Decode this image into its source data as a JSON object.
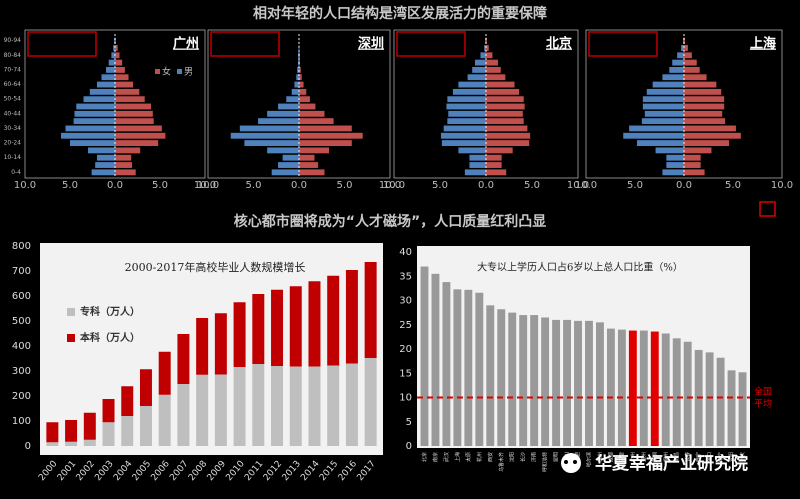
{
  "title": "相对年轻的人口结构是湾区发展活力的重要保障",
  "subtitle": "核心都市圈将成为“人才磁场”，人口质量红利凸显",
  "watermark": "华夏幸福产业研究院",
  "chart_data": [
    {
      "type": "pyramid",
      "title": "广州",
      "legend": true,
      "categories": [
        "0-4",
        null,
        "10-14",
        null,
        "20-24",
        null,
        "30-34",
        null,
        "40-44",
        null,
        "50-54",
        null,
        "60-64",
        null,
        "70-74",
        null,
        "80-84",
        null,
        "90-94"
      ],
      "series": [
        {
          "name": "女",
          "color": "#c0504d",
          "values": [
            2.3,
            1.9,
            1.8,
            2.8,
            4.8,
            5.6,
            5.2,
            4.3,
            4.2,
            4.0,
            3.3,
            2.7,
            2.0,
            1.5,
            1.1,
            0.8,
            0.5,
            0.3,
            0.1
          ]
        },
        {
          "name": "男",
          "color": "#4f81bd",
          "values": [
            -2.6,
            -2.2,
            -2.0,
            -3.0,
            -5.0,
            -6.0,
            -5.5,
            -4.6,
            -4.5,
            -4.3,
            -3.5,
            -2.8,
            -2.0,
            -1.5,
            -1.0,
            -0.7,
            -0.4,
            -0.2,
            -0.1
          ]
        }
      ],
      "xlim": [
        -10,
        10
      ],
      "xticks": [
        {
          "value": -10,
          "label": "10.0"
        },
        {
          "value": -5,
          "label": "5.0"
        },
        {
          "value": 0,
          "label": "0.0"
        },
        {
          "value": 5,
          "label": "5.0"
        },
        {
          "value": 10,
          "label": "10.0"
        }
      ]
    },
    {
      "type": "pyramid",
      "title": "深圳",
      "legend": false,
      "series": [
        {
          "name": "女",
          "color": "#c0504d",
          "values": [
            2.8,
            2.1,
            1.7,
            3.3,
            5.8,
            7.0,
            5.8,
            3.8,
            2.8,
            1.8,
            1.2,
            0.8,
            0.5,
            0.3,
            0.2,
            0.1,
            0.1,
            0.05,
            0.02
          ]
        },
        {
          "name": "男",
          "color": "#4f81bd",
          "values": [
            -3.0,
            -2.3,
            -1.8,
            -3.5,
            -6.0,
            -7.5,
            -6.5,
            -4.5,
            -3.5,
            -2.3,
            -1.4,
            -0.8,
            -0.5,
            -0.3,
            -0.2,
            -0.1,
            -0.1,
            -0.05,
            -0.02
          ]
        }
      ],
      "xlim": [
        -10,
        10
      ],
      "xticks": [
        {
          "value": -10,
          "label": "10.0"
        },
        {
          "value": -5,
          "label": "5.0"
        },
        {
          "value": 0,
          "label": "0.0"
        },
        {
          "value": 5,
          "label": "5.0"
        },
        {
          "value": 10,
          "label": "10.0"
        }
      ]
    },
    {
      "type": "pyramid",
      "title": "北京",
      "legend": false,
      "series": [
        {
          "name": "女",
          "color": "#c0504d",
          "values": [
            2.2,
            1.7,
            1.7,
            2.9,
            4.7,
            4.8,
            4.5,
            4.1,
            4.0,
            4.2,
            4.1,
            3.6,
            3.1,
            2.1,
            1.6,
            1.3,
            0.7,
            0.3,
            0.1
          ]
        },
        {
          "name": "男",
          "color": "#4f81bd",
          "values": [
            -2.3,
            -1.8,
            -1.8,
            -3.0,
            -4.8,
            -4.9,
            -4.6,
            -4.2,
            -4.1,
            -4.3,
            -4.2,
            -3.6,
            -3.0,
            -2.0,
            -1.5,
            -1.2,
            -0.6,
            -0.2,
            -0.1
          ]
        }
      ],
      "xlim": [
        -10,
        10
      ],
      "xticks": [
        {
          "value": -10,
          "label": "10.0"
        },
        {
          "value": -5,
          "label": "5.0"
        },
        {
          "value": 0,
          "label": "0.0"
        },
        {
          "value": 5,
          "label": "5.0"
        },
        {
          "value": 10,
          "label": "10.0"
        }
      ]
    },
    {
      "type": "pyramid",
      "title": "上海",
      "legend": false,
      "series": [
        {
          "name": "女",
          "color": "#c0504d",
          "values": [
            2.1,
            1.7,
            1.7,
            2.8,
            4.6,
            5.8,
            5.3,
            4.2,
            3.9,
            4.1,
            4.1,
            3.8,
            3.3,
            2.3,
            1.6,
            1.3,
            0.8,
            0.4,
            0.1
          ]
        },
        {
          "name": "男",
          "color": "#4f81bd",
          "values": [
            -2.2,
            -1.8,
            -1.8,
            -2.9,
            -4.8,
            -6.2,
            -5.6,
            -4.3,
            -4.0,
            -4.2,
            -4.2,
            -3.8,
            -3.2,
            -2.2,
            -1.5,
            -1.2,
            -0.7,
            -0.3,
            -0.1
          ]
        }
      ],
      "xlim": [
        -10,
        10
      ],
      "xticks": [
        {
          "value": -10,
          "label": "10.0"
        },
        {
          "value": -5,
          "label": "5.0"
        },
        {
          "value": 0,
          "label": "0.0"
        },
        {
          "value": 5,
          "label": "5.0"
        },
        {
          "value": 10,
          "label": "10.0"
        }
      ]
    },
    {
      "type": "stacked_bar",
      "title": "2000-2017年高校毕业人数规模增长",
      "categories": [
        "2000",
        "2001",
        "2002",
        "2003",
        "2004",
        "2005",
        "2006",
        "2007",
        "2008",
        "2009",
        "2010",
        "2011",
        "2012",
        "2013",
        "2014",
        "2015",
        "2016",
        "2017"
      ],
      "series": [
        {
          "name": "专科（万人）",
          "color": "#bfbfbf",
          "values": [
            15,
            17,
            25,
            95,
            120,
            160,
            205,
            248,
            285,
            286,
            316,
            328,
            320,
            318,
            318,
            322,
            330,
            352
          ]
        },
        {
          "name": "本科（万人）",
          "color": "#c00000",
          "values": [
            80,
            87,
            108,
            93,
            119,
            147,
            172,
            200,
            227,
            245,
            259,
            280,
            305,
            321,
            341,
            359,
            374,
            384
          ]
        }
      ],
      "ylim": [
        0,
        800
      ],
      "yticks": [
        0,
        100,
        200,
        300,
        400,
        500,
        600,
        700,
        800
      ]
    },
    {
      "type": "bar",
      "title": "大专以上学历人口占6岁以上总人口比重（%）",
      "categories": [
        "北京",
        "南京",
        "武汉",
        "上海",
        "太原",
        "杭州",
        "西安",
        "乌鲁木齐",
        "沈阳",
        "长沙",
        "济南",
        "呼和浩特",
        "昆明",
        "银川",
        "合肥",
        "哈尔滨",
        "兰州",
        "成都",
        "天津",
        "广州",
        "郑州",
        "深圳",
        "福州",
        "南昌",
        "长春",
        "西宁",
        "海口",
        "南宁",
        "贵阳",
        "重庆"
      ],
      "values": [
        37,
        35.5,
        33.8,
        32.3,
        32.2,
        31.6,
        29,
        28.2,
        27.5,
        27,
        27,
        26.5,
        26,
        26,
        25.8,
        25.8,
        25.5,
        24.2,
        24,
        23.8,
        23.8,
        23.6,
        23.2,
        22.2,
        21.5,
        19.8,
        19.3,
        18.2,
        15.6,
        15.2
      ],
      "colors": [
        "#999999",
        "#999999",
        "#999999",
        "#999999",
        "#999999",
        "#999999",
        "#999999",
        "#999999",
        "#999999",
        "#999999",
        "#999999",
        "#999999",
        "#999999",
        "#999999",
        "#999999",
        "#999999",
        "#999999",
        "#999999",
        "#999999",
        "#e00000",
        "#999999",
        "#e00000",
        "#999999",
        "#999999",
        "#999999",
        "#999999",
        "#999999",
        "#999999",
        "#999999",
        "#999999"
      ],
      "ref_line": {
        "value": 10,
        "label": "全国平均",
        "color": "#e00000"
      },
      "ylim": [
        0,
        40
      ],
      "yticks": [
        0,
        5,
        10,
        15,
        20,
        25,
        30,
        35,
        40
      ]
    }
  ]
}
